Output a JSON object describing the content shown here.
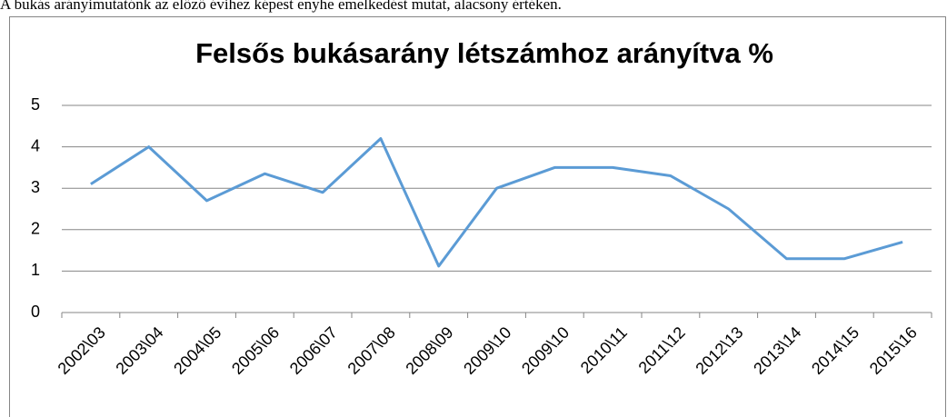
{
  "caption": "A bukás arányimutatónk az előző évihez képest enyhe emelkedést mutat, alacsony értéken.",
  "chart_data": {
    "type": "line",
    "title": "Felsős bukásarány létszámhoz arányítva %",
    "categories": [
      "2002\\03",
      "2003\\04",
      "2004\\05",
      "2005\\06",
      "2006\\07",
      "2007\\08",
      "2008\\09",
      "2009\\10",
      "2009\\10",
      "2010\\11",
      "2011\\12",
      "2012\\13",
      "2013\\14",
      "2014\\15",
      "2015\\16"
    ],
    "values": [
      3.1,
      4.0,
      2.7,
      3.35,
      2.9,
      4.2,
      1.12,
      3.0,
      3.5,
      3.5,
      3.3,
      2.5,
      1.3,
      1.3,
      1.7
    ],
    "color": "#5b9bd5",
    "ylim": [
      0,
      5
    ],
    "yticks": [
      0,
      1,
      2,
      3,
      4,
      5
    ],
    "grid": true
  }
}
